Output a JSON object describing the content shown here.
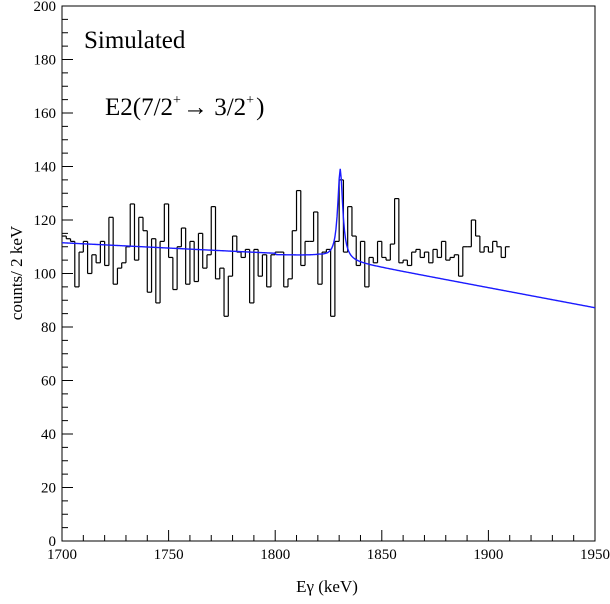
{
  "chart_data": {
    "type": "line",
    "xlabel": "Eγ   (keV)",
    "ylabel": "counts/ 2 keV",
    "xlim": [
      1700,
      1950
    ],
    "ylim": [
      0,
      200
    ],
    "x_ticks": [
      "1700",
      "1750",
      "1800",
      "1850",
      "1900",
      "1950"
    ],
    "y_ticks": [
      "0",
      "20",
      "40",
      "60",
      "80",
      "100",
      "120",
      "140",
      "160",
      "180",
      "200"
    ],
    "annotations": {
      "line1": "Simulated",
      "line2_prefix": "E2(7/2",
      "line2_sup1": "+",
      "line2_mid": "→ 3/2",
      "line2_sup2": "+",
      "line2_suffix": ")"
    },
    "grid": false,
    "colors": {
      "histogram": "#000000",
      "fit": "#1a1aff"
    },
    "series": [
      {
        "kind": "histogram",
        "bin_width": 2,
        "x_start": 1700,
        "values": [
          114,
          113,
          112,
          95,
          108,
          112,
          100,
          107,
          104,
          112,
          103,
          121,
          96,
          102,
          104,
          110,
          126,
          105,
          121,
          116,
          93,
          113,
          89,
          112,
          126,
          106,
          94,
          110,
          117,
          96,
          112,
          97,
          115,
          102,
          107,
          125,
          98,
          102,
          84,
          99,
          114,
          108,
          106,
          109,
          89,
          109,
          99,
          107,
          95,
          107,
          108,
          108,
          95,
          98,
          116,
          131,
          103,
          112,
          112,
          123,
          96,
          108,
          109,
          84,
          112,
          135,
          108,
          125,
          114,
          103,
          112,
          95,
          106,
          104,
          112,
          106,
          105,
          111,
          128,
          104,
          105,
          103,
          108,
          109,
          106,
          108,
          104,
          109,
          106,
          112,
          105,
          106,
          107,
          99,
          110,
          110,
          120,
          114,
          108,
          110,
          108,
          112,
          110,
          106,
          110
        ]
      }
    ]
  }
}
